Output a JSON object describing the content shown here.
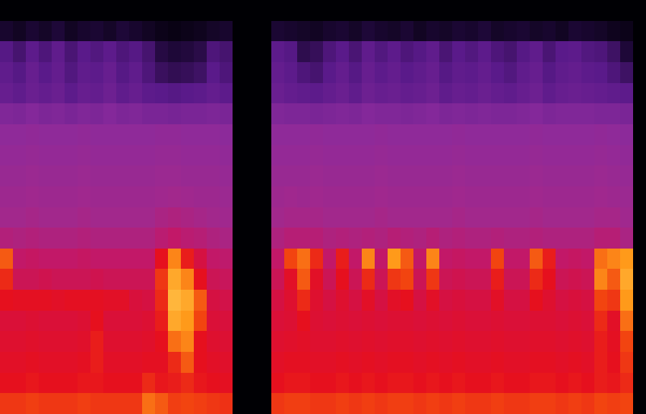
{
  "chart_data": {
    "type": "heatmap",
    "tick_labels": false,
    "zlim": [
      0,
      100
    ],
    "cells": [
      [
        0,
        0,
        0,
        0,
        0,
        0,
        0,
        0,
        0,
        0,
        0,
        0,
        0,
        0,
        0,
        0,
        0,
        0,
        0,
        0,
        0,
        0,
        0,
        0,
        0,
        0,
        0,
        0,
        0,
        0,
        0,
        0,
        0,
        0,
        0,
        0,
        0,
        0,
        0,
        0,
        0,
        0,
        0,
        0,
        0,
        0,
        0,
        0,
        0,
        0
      ],
      [
        8,
        6,
        9,
        7,
        10,
        6,
        8,
        9,
        7,
        10,
        8,
        6,
        4,
        3,
        4,
        5,
        7,
        8,
        0,
        0,
        0,
        9,
        8,
        7,
        6,
        8,
        9,
        7,
        10,
        8,
        7,
        9,
        6,
        8,
        7,
        9,
        8,
        10,
        7,
        8,
        9,
        7,
        8,
        6,
        9,
        8,
        7,
        5,
        4,
        0
      ],
      [
        24,
        20,
        26,
        22,
        27,
        21,
        25,
        23,
        26,
        22,
        24,
        20,
        12,
        10,
        11,
        13,
        22,
        20,
        0,
        0,
        0,
        26,
        24,
        14,
        16,
        22,
        25,
        21,
        27,
        23,
        26,
        22,
        24,
        27,
        21,
        25,
        23,
        26,
        22,
        20,
        24,
        27,
        21,
        25,
        26,
        23,
        22,
        18,
        10,
        0
      ],
      [
        27,
        24,
        29,
        25,
        28,
        23,
        27,
        26,
        29,
        24,
        27,
        22,
        17,
        15,
        16,
        18,
        25,
        22,
        0,
        0,
        0,
        28,
        26,
        22,
        20,
        25,
        28,
        24,
        29,
        26,
        28,
        25,
        27,
        29,
        24,
        27,
        26,
        28,
        25,
        23,
        27,
        29,
        24,
        27,
        28,
        26,
        25,
        22,
        18,
        0
      ],
      [
        29,
        27,
        30,
        28,
        30,
        26,
        29,
        28,
        31,
        27,
        29,
        26,
        25,
        24,
        25,
        26,
        28,
        26,
        0,
        0,
        0,
        30,
        28,
        27,
        26,
        28,
        30,
        27,
        31,
        29,
        30,
        28,
        29,
        31,
        27,
        29,
        28,
        30,
        28,
        27,
        29,
        31,
        27,
        29,
        30,
        29,
        28,
        27,
        26,
        0
      ],
      [
        37,
        36,
        38,
        36,
        37,
        35,
        37,
        36,
        38,
        36,
        37,
        35,
        35,
        34,
        35,
        35,
        36,
        35,
        0,
        0,
        0,
        37,
        36,
        36,
        35,
        36,
        37,
        36,
        38,
        37,
        37,
        36,
        37,
        38,
        36,
        37,
        36,
        37,
        36,
        36,
        37,
        38,
        36,
        37,
        37,
        37,
        36,
        36,
        35,
        0
      ],
      [
        42,
        42,
        43,
        42,
        42,
        42,
        43,
        42,
        42,
        42,
        42,
        42,
        43,
        43,
        42,
        42,
        42,
        41,
        0,
        0,
        0,
        42,
        42,
        42,
        43,
        42,
        42,
        42,
        42,
        43,
        42,
        42,
        42,
        42,
        42,
        43,
        42,
        42,
        42,
        42,
        42,
        43,
        42,
        42,
        42,
        42,
        43,
        42,
        41,
        0
      ],
      [
        44,
        44,
        45,
        44,
        44,
        44,
        45,
        44,
        44,
        44,
        44,
        44,
        45,
        45,
        44,
        44,
        44,
        43,
        0,
        0,
        0,
        44,
        44,
        44,
        45,
        44,
        44,
        44,
        44,
        45,
        44,
        44,
        44,
        44,
        44,
        45,
        44,
        44,
        44,
        44,
        44,
        45,
        44,
        44,
        44,
        44,
        45,
        44,
        43,
        0
      ],
      [
        46,
        46,
        47,
        46,
        46,
        46,
        47,
        46,
        46,
        46,
        46,
        46,
        47,
        47,
        46,
        46,
        46,
        45,
        0,
        0,
        0,
        46,
        46,
        46,
        47,
        46,
        46,
        46,
        46,
        47,
        46,
        46,
        46,
        46,
        46,
        47,
        46,
        46,
        46,
        46,
        46,
        47,
        46,
        46,
        46,
        46,
        47,
        46,
        45,
        0
      ],
      [
        48,
        48,
        49,
        48,
        48,
        48,
        49,
        48,
        48,
        48,
        48,
        48,
        49,
        50,
        49,
        48,
        48,
        47,
        0,
        0,
        0,
        48,
        49,
        48,
        49,
        48,
        48,
        48,
        48,
        49,
        48,
        48,
        48,
        48,
        48,
        49,
        48,
        48,
        48,
        48,
        48,
        49,
        48,
        48,
        48,
        48,
        49,
        48,
        47,
        0
      ],
      [
        50,
        50,
        51,
        50,
        50,
        50,
        51,
        50,
        50,
        50,
        50,
        50,
        52,
        53,
        52,
        51,
        50,
        49,
        0,
        0,
        0,
        50,
        51,
        51,
        51,
        50,
        50,
        50,
        50,
        51,
        50,
        50,
        50,
        50,
        50,
        51,
        50,
        50,
        50,
        50,
        50,
        51,
        50,
        50,
        50,
        50,
        51,
        51,
        49,
        0
      ],
      [
        54,
        53,
        54,
        53,
        53,
        53,
        54,
        53,
        53,
        53,
        53,
        53,
        56,
        58,
        56,
        55,
        53,
        52,
        0,
        0,
        0,
        53,
        55,
        55,
        55,
        53,
        54,
        53,
        54,
        53,
        55,
        54,
        53,
        55,
        53,
        54,
        53,
        53,
        54,
        53,
        53,
        54,
        53,
        53,
        53,
        53,
        55,
        55,
        52,
        0
      ],
      [
        82,
        58,
        59,
        58,
        58,
        58,
        59,
        58,
        58,
        58,
        58,
        58,
        72,
        86,
        74,
        64,
        58,
        57,
        0,
        0,
        0,
        58,
        80,
        84,
        76,
        58,
        74,
        58,
        86,
        58,
        88,
        82,
        58,
        86,
        58,
        59,
        58,
        58,
        80,
        58,
        58,
        82,
        74,
        58,
        59,
        58,
        84,
        86,
        88,
        0
      ],
      [
        76,
        61,
        61,
        62,
        61,
        61,
        61,
        62,
        61,
        61,
        61,
        61,
        78,
        90,
        86,
        72,
        61,
        60,
        0,
        0,
        0,
        61,
        70,
        82,
        70,
        61,
        72,
        61,
        76,
        61,
        78,
        80,
        61,
        78,
        61,
        62,
        61,
        61,
        74,
        61,
        61,
        76,
        72,
        61,
        62,
        61,
        86,
        82,
        90,
        0
      ],
      [
        72,
        71,
        71,
        71,
        70,
        71,
        71,
        71,
        70,
        70,
        65,
        64,
        76,
        92,
        90,
        82,
        64,
        63,
        0,
        0,
        0,
        64,
        68,
        76,
        68,
        64,
        68,
        64,
        70,
        64,
        70,
        72,
        64,
        70,
        64,
        65,
        64,
        64,
        70,
        64,
        64,
        72,
        68,
        64,
        65,
        64,
        80,
        78,
        88,
        0
      ],
      [
        66,
        66,
        67,
        66,
        66,
        66,
        67,
        72,
        66,
        66,
        66,
        67,
        74,
        90,
        88,
        80,
        66,
        65,
        0,
        0,
        0,
        66,
        67,
        72,
        67,
        66,
        67,
        66,
        67,
        66,
        67,
        67,
        66,
        67,
        66,
        67,
        66,
        66,
        67,
        66,
        66,
        67,
        67,
        66,
        67,
        66,
        76,
        70,
        84,
        0
      ],
      [
        68,
        68,
        69,
        68,
        68,
        68,
        69,
        74,
        68,
        68,
        68,
        69,
        72,
        84,
        86,
        72,
        68,
        67,
        0,
        0,
        0,
        68,
        69,
        70,
        68,
        68,
        69,
        68,
        69,
        68,
        69,
        69,
        68,
        69,
        68,
        69,
        68,
        68,
        69,
        68,
        68,
        69,
        69,
        68,
        69,
        68,
        74,
        71,
        80,
        0
      ],
      [
        70,
        70,
        71,
        70,
        70,
        70,
        71,
        74,
        70,
        70,
        70,
        71,
        71,
        76,
        82,
        72,
        70,
        69,
        0,
        0,
        0,
        70,
        71,
        71,
        70,
        70,
        71,
        70,
        71,
        70,
        71,
        71,
        70,
        71,
        70,
        71,
        70,
        70,
        71,
        70,
        70,
        71,
        71,
        70,
        71,
        70,
        74,
        72,
        78,
        0
      ],
      [
        72,
        72,
        73,
        72,
        72,
        72,
        73,
        73,
        72,
        72,
        72,
        76,
        73,
        74,
        76,
        73,
        72,
        71,
        0,
        0,
        0,
        72,
        73,
        73,
        72,
        72,
        73,
        72,
        73,
        72,
        73,
        73,
        72,
        73,
        72,
        73,
        72,
        72,
        73,
        72,
        72,
        73,
        73,
        72,
        73,
        72,
        74,
        73,
        76,
        0
      ],
      [
        78,
        78,
        79,
        78,
        78,
        78,
        79,
        78,
        78,
        78,
        78,
        84,
        82,
        79,
        80,
        79,
        78,
        77,
        0,
        0,
        0,
        78,
        79,
        79,
        78,
        78,
        79,
        78,
        79,
        78,
        79,
        79,
        78,
        79,
        78,
        79,
        78,
        78,
        79,
        78,
        78,
        79,
        79,
        78,
        79,
        78,
        80,
        79,
        80,
        0
      ]
    ]
  }
}
